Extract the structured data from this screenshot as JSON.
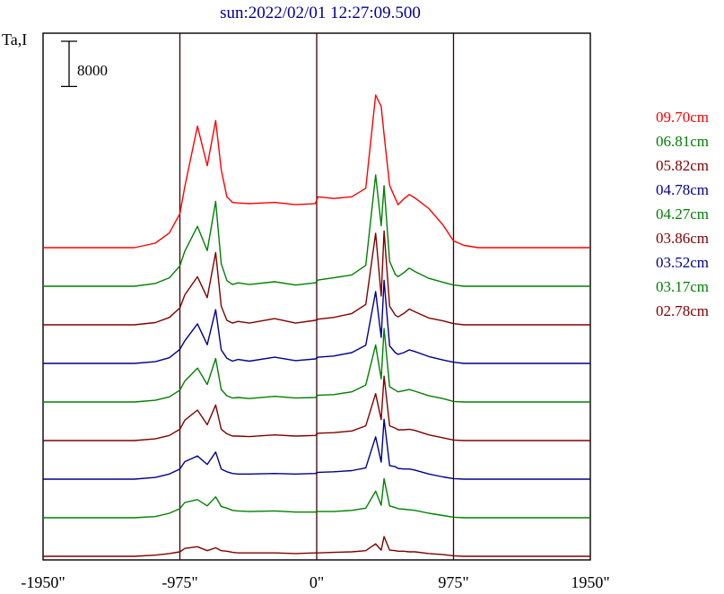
{
  "title": "sun:2022/02/01 12:27:09.500",
  "ylabel": "Ta,I",
  "scale_bar_label": "8000",
  "chart_data": {
    "type": "line",
    "title": "sun:2022/02/01 12:27:09.500",
    "xlabel": "",
    "ylabel": "Ta,I",
    "xlim": [
      -1950,
      1950
    ],
    "x_ticks": [
      -1950,
      -975,
      0,
      975,
      1950
    ],
    "x_tick_labels": [
      "-1950\"",
      "-975\"",
      "0\"",
      "975\"",
      "1950\""
    ],
    "vertical_lines": [
      -975,
      0,
      975
    ],
    "scale_bar": 8000,
    "grid": false,
    "legend_position": "right",
    "x": [
      -1950,
      -1300,
      -1150,
      -1050,
      -975,
      -940,
      -850,
      -780,
      -720,
      -680,
      -640,
      -600,
      -560,
      -480,
      -300,
      -150,
      -10,
      10,
      120,
      250,
      350,
      420,
      460,
      480,
      520,
      560,
      580,
      620,
      660,
      700,
      800,
      900,
      975,
      1050,
      1150,
      1950
    ],
    "series": [
      {
        "name": "09.70cm",
        "color": "#ff0000",
        "offset": 0,
        "values": [
          0,
          0,
          800,
          2600,
          6000,
          10800,
          21500,
          14500,
          22500,
          13800,
          9000,
          8000,
          7900,
          7800,
          8000,
          7600,
          7800,
          9000,
          8700,
          9000,
          10500,
          27000,
          25000,
          20000,
          11000,
          8700,
          7600,
          8600,
          9400,
          8800,
          6900,
          4000,
          1200,
          400,
          0,
          0
        ]
      },
      {
        "name": "06.81cm",
        "color": "#008000",
        "offset": 0,
        "values": [
          0,
          0,
          500,
          1500,
          3600,
          6200,
          10600,
          6300,
          15000,
          4000,
          1000,
          300,
          600,
          300,
          800,
          200,
          600,
          1100,
          1500,
          2000,
          3700,
          19700,
          10700,
          17800,
          4400,
          2100,
          1700,
          2400,
          3200,
          2600,
          1400,
          700,
          200,
          0,
          0,
          0
        ]
      },
      {
        "name": "05.82cm",
        "color": "#800000",
        "offset": 0,
        "values": [
          0,
          0,
          400,
          1300,
          3000,
          5300,
          8500,
          4800,
          12800,
          3300,
          800,
          300,
          600,
          300,
          1100,
          300,
          800,
          1000,
          1300,
          2000,
          3600,
          16200,
          5100,
          16600,
          3300,
          1700,
          1400,
          2000,
          2800,
          2300,
          1200,
          700,
          200,
          0,
          0,
          0
        ]
      },
      {
        "name": "04.78cm",
        "color": "#00008b",
        "offset": 0,
        "values": [
          0,
          0,
          300,
          1000,
          2500,
          4000,
          7000,
          3300,
          9500,
          2400,
          900,
          400,
          700,
          400,
          1100,
          500,
          800,
          1100,
          1300,
          1900,
          3200,
          12700,
          4600,
          14700,
          3100,
          1900,
          1600,
          1900,
          2400,
          2100,
          1200,
          600,
          200,
          0,
          0,
          0
        ]
      },
      {
        "name": "04.27cm",
        "color": "#008000",
        "offset": 0,
        "values": [
          0,
          0,
          300,
          900,
          2100,
          3700,
          6000,
          3100,
          7700,
          2200,
          1100,
          700,
          800,
          600,
          1000,
          700,
          800,
          1200,
          1300,
          1800,
          3000,
          10100,
          4100,
          13000,
          2700,
          2100,
          1800,
          2000,
          2200,
          1900,
          1100,
          600,
          100,
          0,
          0,
          0
        ]
      },
      {
        "name": "03.86cm",
        "color": "#800000",
        "offset": 0,
        "values": [
          0,
          0,
          300,
          900,
          2000,
          3600,
          5400,
          2800,
          6300,
          2000,
          1200,
          800,
          800,
          700,
          1000,
          800,
          900,
          1300,
          1400,
          1700,
          2600,
          8300,
          3700,
          11400,
          2600,
          2200,
          1900,
          1900,
          2000,
          1800,
          1000,
          500,
          100,
          0,
          0,
          0
        ]
      },
      {
        "name": "03.52cm",
        "color": "#00008b",
        "offset": 0,
        "values": [
          0,
          0,
          300,
          900,
          1800,
          3100,
          4100,
          2600,
          4800,
          1800,
          1300,
          1000,
          900,
          900,
          1000,
          900,
          1000,
          1200,
          1300,
          1500,
          2000,
          7500,
          3000,
          10600,
          2400,
          2200,
          1900,
          1800,
          1800,
          1600,
          900,
          400,
          100,
          0,
          0,
          0
        ]
      },
      {
        "name": "03.17cm",
        "color": "#008000",
        "offset": 0,
        "values": [
          0,
          0,
          200,
          800,
          1600,
          2700,
          3200,
          2100,
          3700,
          2000,
          1700,
          1300,
          1200,
          1100,
          1200,
          1000,
          1000,
          1100,
          1100,
          1300,
          1700,
          4700,
          2200,
          6900,
          2100,
          1800,
          1600,
          1500,
          1400,
          1300,
          800,
          400,
          100,
          0,
          0,
          0
        ]
      },
      {
        "name": "02.78cm",
        "color": "#800000",
        "offset": 0,
        "values": [
          0,
          0,
          200,
          500,
          800,
          1400,
          1700,
          1000,
          1500,
          1000,
          900,
          700,
          600,
          600,
          600,
          500,
          600,
          600,
          700,
          800,
          1000,
          2200,
          1100,
          3500,
          1100,
          1000,
          900,
          900,
          800,
          800,
          500,
          300,
          100,
          0,
          0,
          0
        ]
      }
    ]
  }
}
